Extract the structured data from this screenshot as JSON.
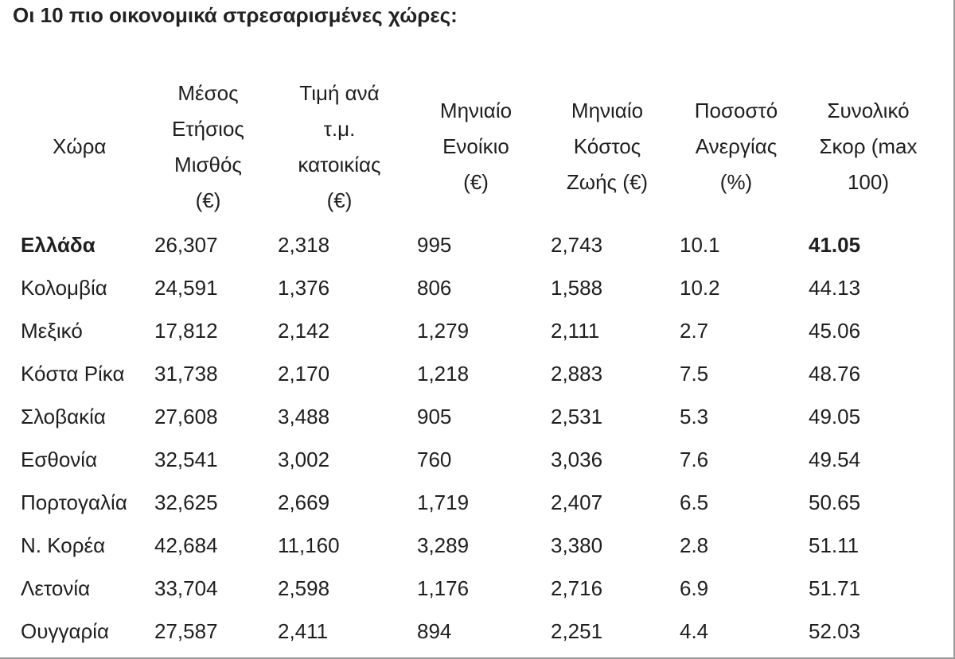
{
  "title": "Οι 10 πιο οικονομικά στρεσαρισμένες χώρες:",
  "headers": [
    [
      "Χώρα"
    ],
    [
      "Μέσος",
      "Ετήσιος",
      "Μισθός",
      "(€)"
    ],
    [
      "Τιμή ανά",
      "τ.μ.",
      "κατοικίας",
      "(€)"
    ],
    [
      "Μηνιαίο",
      "Ενοίκιο",
      "(€)"
    ],
    [
      "Μηνιαίο",
      "Κόστος",
      "Ζωής (€)"
    ],
    [
      "Ποσοστό",
      "Ανεργίας",
      "(%)"
    ],
    [
      "Συνολικό",
      "Σκορ (max",
      "100)"
    ]
  ],
  "rows": [
    [
      "Ελλάδα",
      "26,307",
      "2,318",
      "995",
      "2,743",
      "10.1",
      "41.05"
    ],
    [
      "Κολομβία",
      "24,591",
      "1,376",
      "806",
      "1,588",
      "10.2",
      "44.13"
    ],
    [
      "Μεξικό",
      "17,812",
      "2,142",
      "1,279",
      "2,111",
      "2.7",
      "45.06"
    ],
    [
      "Κόστα Ρίκα",
      "31,738",
      "2,170",
      "1,218",
      "2,883",
      "7.5",
      "48.76"
    ],
    [
      "Σλοβακία",
      "27,608",
      "3,488",
      "905",
      "2,531",
      "5.3",
      "49.05"
    ],
    [
      "Εσθονία",
      "32,541",
      "3,002",
      "760",
      "3,036",
      "7.6",
      "49.54"
    ],
    [
      "Πορτογαλία",
      "32,625",
      "2,669",
      "1,719",
      "2,407",
      "6.5",
      "50.65"
    ],
    [
      "Ν. Κορέα",
      "42,684",
      "11,160",
      "3,289",
      "3,380",
      "2.8",
      "51.11"
    ],
    [
      "Λετονία",
      "33,704",
      "2,598",
      "1,176",
      "2,716",
      "6.9",
      "51.71"
    ],
    [
      "Ουγγαρία",
      "27,587",
      "2,411",
      "894",
      "2,251",
      "4.4",
      "52.03"
    ]
  ]
}
